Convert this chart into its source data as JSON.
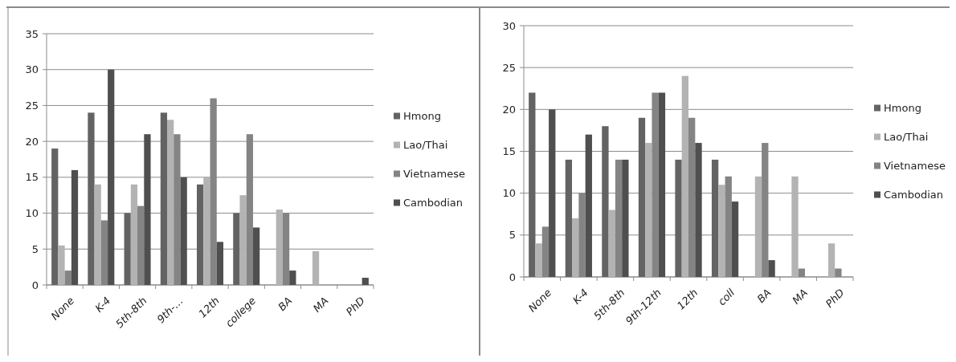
{
  "chart_data": [
    {
      "type": "bar",
      "categories": [
        "None",
        "K-4",
        "5th-8th",
        "9th-…",
        "12th",
        "college",
        "BA",
        "MA",
        "PhD"
      ],
      "series": [
        {
          "name": "Hmong",
          "color": "#636363",
          "values": [
            19,
            24,
            10,
            24,
            14,
            10,
            0,
            0,
            0
          ]
        },
        {
          "name": "Lao/Thai",
          "color": "#b3b3b3",
          "values": [
            5.5,
            14,
            14,
            23,
            15,
            12.5,
            10.5,
            4.7,
            0
          ]
        },
        {
          "name": "Vietnamese",
          "color": "#848484",
          "values": [
            2,
            9,
            11,
            21,
            26,
            21,
            10,
            0,
            0
          ]
        },
        {
          "name": "Cambodian",
          "color": "#4f4f4f",
          "values": [
            16,
            30,
            21,
            15,
            6,
            8,
            2,
            0,
            1
          ]
        }
      ],
      "ylim": [
        0,
        35
      ],
      "yticks": [
        0,
        5,
        10,
        15,
        20,
        25,
        30,
        35
      ],
      "grid": "y",
      "legend": "right"
    },
    {
      "type": "bar",
      "categories": [
        "None",
        "K-4",
        "5th-8th",
        "9th-12th",
        "12th",
        "coll",
        "BA",
        "MA",
        "PhD"
      ],
      "series": [
        {
          "name": "Hmong",
          "color": "#636363",
          "values": [
            22,
            14,
            18,
            19,
            14,
            14,
            0,
            0,
            0
          ]
        },
        {
          "name": "Lao/Thai",
          "color": "#b3b3b3",
          "values": [
            4,
            7,
            8,
            16,
            24,
            11,
            12,
            12,
            4
          ]
        },
        {
          "name": "Vietnamese",
          "color": "#848484",
          "values": [
            6,
            10,
            14,
            22,
            19,
            12,
            16,
            1,
            1
          ]
        },
        {
          "name": "Cambodian",
          "color": "#4f4f4f",
          "values": [
            20,
            17,
            14,
            22,
            16,
            9,
            2,
            0,
            0
          ]
        }
      ],
      "ylim": [
        0,
        30
      ],
      "yticks": [
        0,
        5,
        10,
        15,
        20,
        25,
        30
      ],
      "grid": "y",
      "legend": "right"
    }
  ]
}
